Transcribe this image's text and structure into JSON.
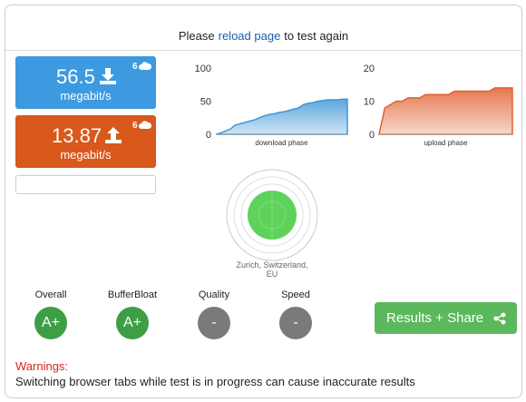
{
  "header": {
    "before": "Please",
    "link": "reload page",
    "after": "to test again"
  },
  "download": {
    "value": "56.5",
    "unit": "megabit/s",
    "streams": "6"
  },
  "upload": {
    "value": "13.87",
    "unit": "megabit/s",
    "streams": "6"
  },
  "charts": [
    {
      "type": "area",
      "label": "download phase",
      "color": "#3f97d6",
      "ylim": [
        0,
        100
      ],
      "yticks": [
        0,
        50,
        100
      ],
      "values": [
        0,
        2,
        5,
        8,
        14,
        16,
        18,
        20,
        22,
        25,
        28,
        30,
        31,
        33,
        34,
        36,
        38,
        40,
        45,
        47,
        48,
        50,
        51,
        52,
        52,
        52,
        53,
        53
      ]
    },
    {
      "type": "area",
      "label": "upload phase",
      "color": "#e0602e",
      "ylim": [
        0,
        20
      ],
      "yticks": [
        0,
        10,
        20
      ],
      "values": [
        0,
        8,
        9,
        10,
        10,
        11,
        11,
        11,
        12,
        12,
        12,
        12,
        12,
        13,
        13,
        13,
        13,
        13,
        13,
        13,
        14,
        14,
        14,
        14
      ]
    }
  ],
  "server": {
    "location": "Zurich, Switzerland, EU"
  },
  "grades": [
    {
      "label": "Overall",
      "grade": "A+",
      "color": "#3e9e45"
    },
    {
      "label": "BufferBloat",
      "grade": "A+",
      "color": "#3e9e45"
    },
    {
      "label": "Quality",
      "grade": "-",
      "color": "#7a7a7a"
    },
    {
      "label": "Speed",
      "grade": "-",
      "color": "#7a7a7a"
    }
  ],
  "button": "Results + Share",
  "warnings": {
    "title": "Warnings:",
    "text": "Switching browser tabs while test is in progress can cause inaccurate results"
  }
}
